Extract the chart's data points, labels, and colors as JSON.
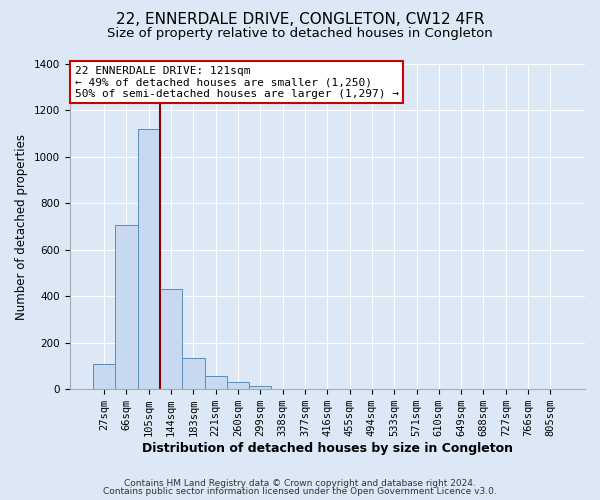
{
  "title": "22, ENNERDALE DRIVE, CONGLETON, CW12 4FR",
  "subtitle": "Size of property relative to detached houses in Congleton",
  "xlabel": "Distribution of detached houses by size in Congleton",
  "ylabel": "Number of detached properties",
  "bar_labels": [
    "27sqm",
    "66sqm",
    "105sqm",
    "144sqm",
    "183sqm",
    "221sqm",
    "260sqm",
    "299sqm",
    "338sqm",
    "377sqm",
    "416sqm",
    "455sqm",
    "494sqm",
    "533sqm",
    "571sqm",
    "610sqm",
    "649sqm",
    "688sqm",
    "727sqm",
    "766sqm",
    "805sqm"
  ],
  "bar_heights": [
    110,
    705,
    1120,
    430,
    133,
    57,
    30,
    15,
    0,
    0,
    0,
    0,
    0,
    0,
    0,
    0,
    0,
    0,
    0,
    0,
    0
  ],
  "bar_color": "#c6d9f0",
  "bar_edge_color": "#5b8db8",
  "vline_color": "#8b0000",
  "ylim": [
    0,
    1400
  ],
  "yticks": [
    0,
    200,
    400,
    600,
    800,
    1000,
    1200,
    1400
  ],
  "annotation_title": "22 ENNERDALE DRIVE: 121sqm",
  "annotation_line1": "← 49% of detached houses are smaller (1,250)",
  "annotation_line2": "50% of semi-detached houses are larger (1,297) →",
  "annotation_box_color": "#ffffff",
  "annotation_box_edge": "#cc0000",
  "footer1": "Contains HM Land Registry data © Crown copyright and database right 2024.",
  "footer2": "Contains public sector information licensed under the Open Government Licence v3.0.",
  "background_color": "#dce8f5",
  "plot_background": "#dce8f5",
  "grid_color": "#ffffff",
  "title_fontsize": 11,
  "subtitle_fontsize": 9.5,
  "ylabel_fontsize": 8.5,
  "xlabel_fontsize": 9,
  "tick_fontsize": 7.5,
  "annotation_fontsize": 8,
  "footer_fontsize": 6.5
}
